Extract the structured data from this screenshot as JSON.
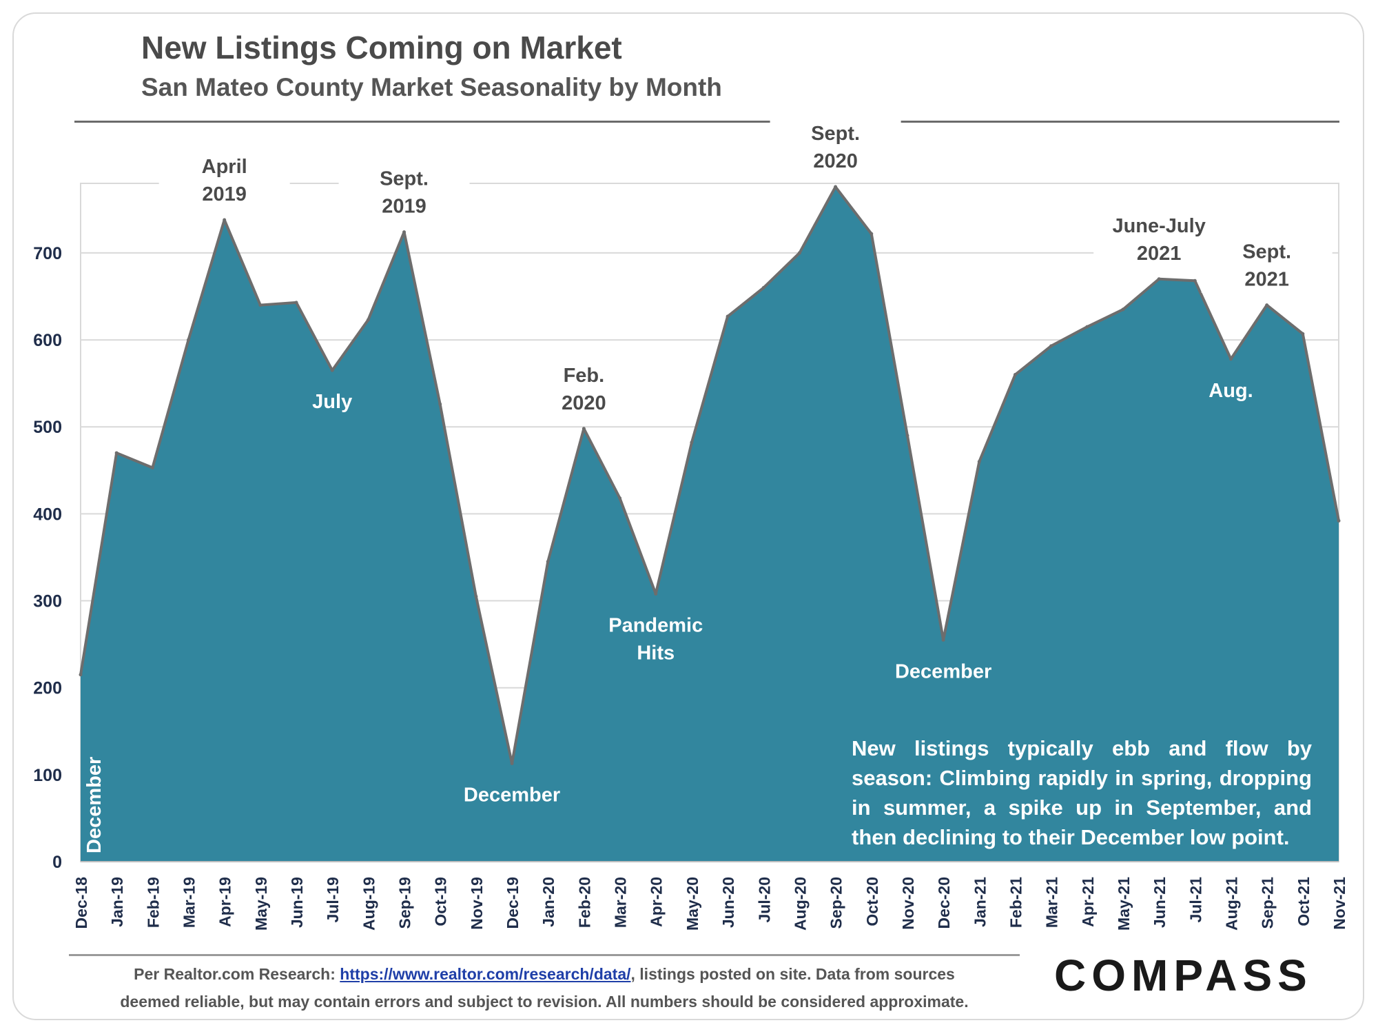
{
  "header": {
    "title": "New Listings Coming on Market",
    "subtitle": "San Mateo County Market Seasonality by Month"
  },
  "footer": {
    "source_prefix": "Per Realtor.com Research:  ",
    "source_link": "https://www.realtor.com/research/data/",
    "source_suffix": ", listings posted on site. Data from sources",
    "disclaimer": "deemed reliable, but may contain errors and subject to revision. All numbers should be considered approximate.",
    "logo_text": "COMPASS"
  },
  "note": "New listings typically ebb and flow by season: Climbing rapidly in spring, dropping in summer, a spike up in September, and then declining to their December low point.",
  "colors": {
    "area_fill": "#32869e",
    "area_stroke": "#6d6d6d",
    "grid": "#d9d9d9",
    "axis_text": "#1f2d4a",
    "label_dark": "#4a4a4a"
  },
  "chart_data": {
    "type": "area",
    "title": "New Listings Coming on Market",
    "subtitle": "San Mateo County Market Seasonality by Month",
    "xlabel": "",
    "ylabel": "",
    "ylim": [
      0,
      780
    ],
    "yticks": [
      0,
      100,
      200,
      300,
      400,
      500,
      600,
      700
    ],
    "grid": true,
    "categories": [
      "Dec-18",
      "Jan-19",
      "Feb-19",
      "Mar-19",
      "Apr-19",
      "May-19",
      "Jun-19",
      "Jul-19",
      "Aug-19",
      "Sep-19",
      "Oct-19",
      "Nov-19",
      "Dec-19",
      "Jan-20",
      "Feb-20",
      "Mar-20",
      "Apr-20",
      "May-20",
      "Jun-20",
      "Jul-20",
      "Aug-20",
      "Sep-20",
      "Oct-20",
      "Nov-20",
      "Dec-20",
      "Jan-21",
      "Feb-21",
      "Mar-21",
      "Apr-21",
      "May-21",
      "Jun-21",
      "Jul-21",
      "Aug-21",
      "Sep-21",
      "Oct-21",
      "Nov-21"
    ],
    "values": [
      215,
      470,
      453,
      600,
      738,
      640,
      643,
      565,
      623,
      724,
      526,
      305,
      113,
      345,
      498,
      418,
      308,
      482,
      627,
      660,
      700,
      776,
      722,
      490,
      255,
      460,
      560,
      593,
      615,
      635,
      670,
      668,
      578,
      640,
      607,
      392
    ],
    "annotations": [
      {
        "text": [
          "April",
          "2019"
        ],
        "category": "Apr-19",
        "style": "dark-above"
      },
      {
        "text": [
          "Sept.",
          "2019"
        ],
        "category": "Sep-19",
        "style": "dark-above"
      },
      {
        "text": [
          "July"
        ],
        "category": "Jul-19",
        "style": "white-inside"
      },
      {
        "text": [
          "December"
        ],
        "category": "Dec-18",
        "style": "white-vertical"
      },
      {
        "text": [
          "December"
        ],
        "category": "Dec-19",
        "style": "white-inside"
      },
      {
        "text": [
          "Feb.",
          "2020"
        ],
        "category": "Feb-20",
        "style": "dark-above"
      },
      {
        "text": [
          "Pandemic",
          "Hits"
        ],
        "category": "Apr-20",
        "style": "white-inside"
      },
      {
        "text": [
          "Sept.",
          "2020"
        ],
        "category": "Sep-20",
        "style": "dark-above"
      },
      {
        "text": [
          "December"
        ],
        "category": "Dec-20",
        "style": "white-inside"
      },
      {
        "text": [
          "June-July",
          "2021"
        ],
        "category": "Jun-21",
        "style": "dark-above"
      },
      {
        "text": [
          "Sept.",
          "2021"
        ],
        "category": "Sep-21",
        "style": "dark-above"
      },
      {
        "text": [
          "Aug."
        ],
        "category": "Aug-21",
        "style": "white-inside"
      }
    ]
  }
}
